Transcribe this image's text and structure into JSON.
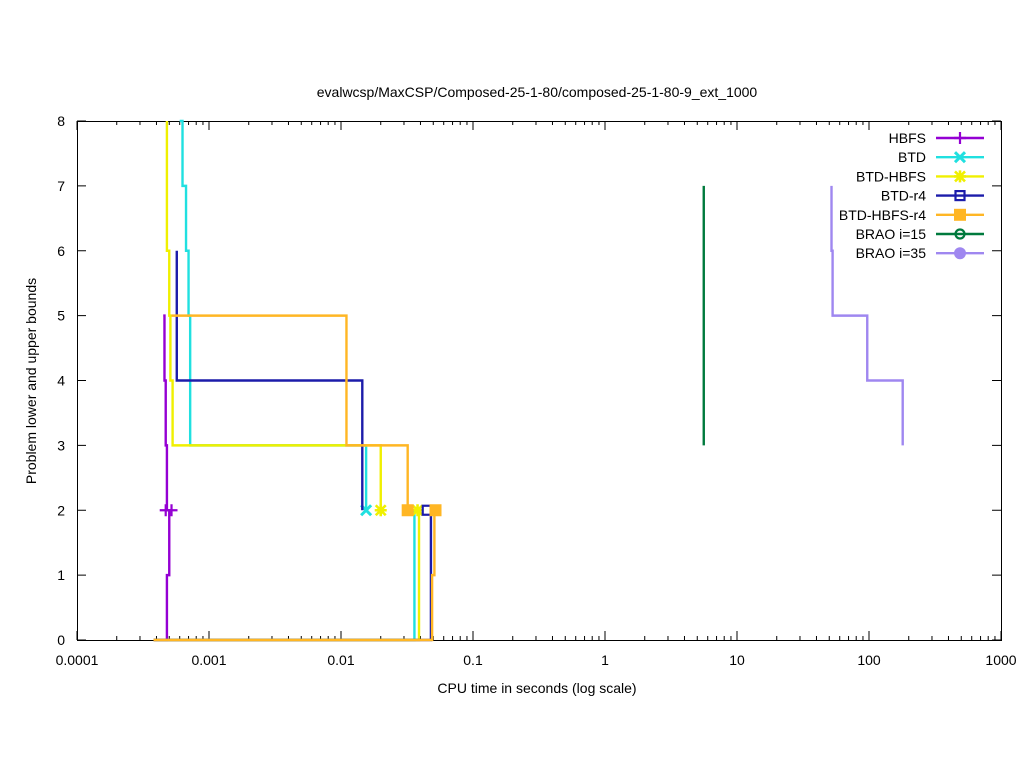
{
  "chart_data": {
    "type": "line",
    "title": "evalwcsp/MaxCSP/Composed-25-1-80/composed-25-1-80-9_ext_1000",
    "xlabel": "CPU time in seconds (log scale)",
    "ylabel": "Problem lower and upper bounds",
    "x_scale": "log",
    "xlim": [
      0.0001,
      1000
    ],
    "ylim": [
      0,
      8
    ],
    "x_ticks": [
      {
        "value": 0.0001,
        "label": "0.0001"
      },
      {
        "value": 0.001,
        "label": "0.001"
      },
      {
        "value": 0.01,
        "label": "0.01"
      },
      {
        "value": 0.1,
        "label": "0.1"
      },
      {
        "value": 1,
        "label": "1"
      },
      {
        "value": 10,
        "label": "10"
      },
      {
        "value": 100,
        "label": "100"
      },
      {
        "value": 1000,
        "label": "1000"
      }
    ],
    "y_ticks": [
      {
        "value": 0,
        "label": "0"
      },
      {
        "value": 1,
        "label": "1"
      },
      {
        "value": 2,
        "label": "2"
      },
      {
        "value": 3,
        "label": "3"
      },
      {
        "value": 4,
        "label": "4"
      },
      {
        "value": 5,
        "label": "5"
      },
      {
        "value": 6,
        "label": "6"
      },
      {
        "value": 7,
        "label": "7"
      },
      {
        "value": 8,
        "label": "8"
      }
    ],
    "grid": false,
    "legend_position": "top-right",
    "series": [
      {
        "name": "HBFS",
        "color": "#9400d3",
        "marker": "plus",
        "upper": [
          [
            0.00045,
            5
          ],
          [
            0.00046,
            5
          ],
          [
            0.00046,
            4
          ],
          [
            0.00047,
            4
          ],
          [
            0.00047,
            3
          ],
          [
            0.00048,
            3
          ],
          [
            0.00048,
            2
          ]
        ],
        "lower": [
          [
            0.00038,
            0
          ],
          [
            0.00048,
            0
          ],
          [
            0.00048,
            1
          ],
          [
            0.0005,
            1
          ],
          [
            0.0005,
            2
          ]
        ],
        "markers": [
          [
            0.00047,
            2
          ],
          [
            0.00052,
            2
          ]
        ]
      },
      {
        "name": "BTD",
        "color": "#20e0e0",
        "marker": "x",
        "upper": [
          [
            0.0006,
            8
          ],
          [
            0.00063,
            8
          ],
          [
            0.00063,
            7
          ],
          [
            0.00067,
            7
          ],
          [
            0.00067,
            6
          ],
          [
            0.0007,
            6
          ],
          [
            0.0007,
            5
          ],
          [
            0.00072,
            5
          ],
          [
            0.00072,
            3
          ],
          [
            0.0155,
            3
          ],
          [
            0.0155,
            2
          ]
        ],
        "lower": [
          [
            0.00038,
            0
          ],
          [
            0.036,
            0
          ],
          [
            0.036,
            2
          ]
        ],
        "markers": [
          [
            0.0155,
            2
          ]
        ]
      },
      {
        "name": "BTD-HBFS",
        "color": "#f0f000",
        "marker": "star",
        "upper": [
          [
            0.00048,
            8
          ],
          [
            0.00048,
            6
          ],
          [
            0.0005,
            6
          ],
          [
            0.0005,
            5
          ],
          [
            0.00051,
            5
          ],
          [
            0.00051,
            4
          ],
          [
            0.00053,
            4
          ],
          [
            0.00053,
            3
          ],
          [
            0.02,
            3
          ],
          [
            0.02,
            2
          ]
        ],
        "lower": [
          [
            0.00038,
            0
          ],
          [
            0.039,
            0
          ],
          [
            0.039,
            2
          ]
        ],
        "markers": [
          [
            0.02,
            2
          ],
          [
            0.038,
            2
          ]
        ]
      },
      {
        "name": "BTD-r4",
        "color": "#1c1caa",
        "marker": "square-open",
        "upper": [
          [
            0.00057,
            6
          ],
          [
            0.00057,
            4
          ],
          [
            0.0145,
            4
          ],
          [
            0.0145,
            2
          ]
        ],
        "lower": [
          [
            0.00038,
            0
          ],
          [
            0.048,
            0
          ],
          [
            0.048,
            2
          ]
        ],
        "markers": [
          [
            0.045,
            2
          ]
        ]
      },
      {
        "name": "BTD-HBFS-r4",
        "color": "#ffb624",
        "marker": "square-filled",
        "upper": [
          [
            0.00052,
            5
          ],
          [
            0.011,
            5
          ],
          [
            0.011,
            3
          ],
          [
            0.032,
            3
          ],
          [
            0.032,
            2
          ]
        ],
        "lower": [
          [
            0.00038,
            0
          ],
          [
            0.049,
            0
          ],
          [
            0.049,
            1
          ],
          [
            0.051,
            1
          ],
          [
            0.051,
            2
          ]
        ],
        "markers": [
          [
            0.032,
            2
          ],
          [
            0.052,
            2
          ]
        ]
      },
      {
        "name": "BRAO i=15",
        "color": "#007a3d",
        "marker": "circle-open",
        "upper": [
          [
            5.6,
            7
          ],
          [
            5.6,
            3
          ]
        ],
        "lower": [],
        "markers": []
      },
      {
        "name": "BRAO i=35",
        "color": "#9f87f0",
        "marker": "circle-filled",
        "upper": [
          [
            52,
            7
          ],
          [
            52,
            6
          ],
          [
            53,
            6
          ],
          [
            53,
            5
          ],
          [
            97,
            5
          ],
          [
            97,
            4
          ],
          [
            180,
            4
          ],
          [
            180,
            3
          ]
        ],
        "lower": [],
        "markers": []
      }
    ]
  }
}
